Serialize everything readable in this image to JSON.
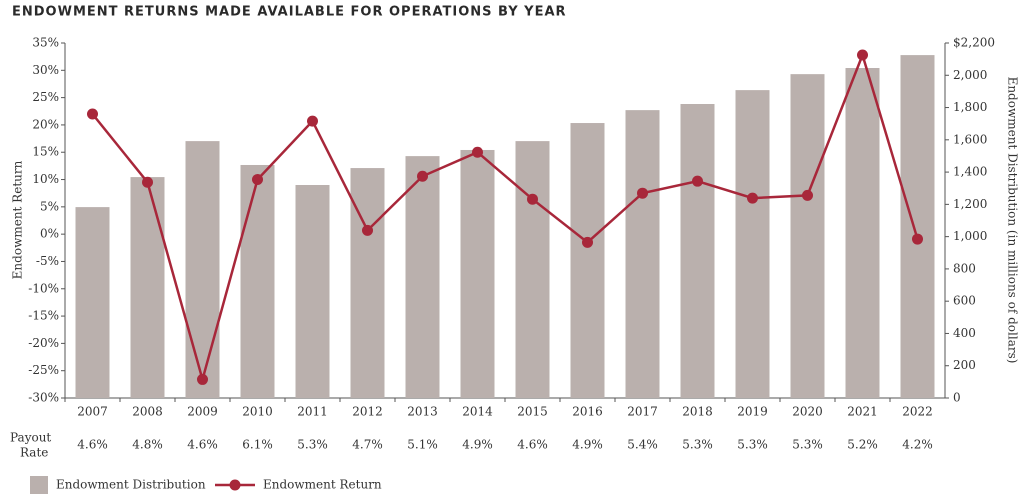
{
  "chart_data": {
    "type": "bar",
    "title": "ENDOWMENT RETURNS MADE AVAILABLE FOR OPERATIONS BY YEAR",
    "ylabel": "Endowment Return",
    "y2label": "Endowment Distribution (in millions of dollars)",
    "categories": [
      "2007",
      "2008",
      "2009",
      "2010",
      "2011",
      "2012",
      "2013",
      "2014",
      "2015",
      "2016",
      "2017",
      "2018",
      "2019",
      "2020",
      "2021",
      "2022"
    ],
    "series": [
      {
        "name": "Endowment Distribution",
        "type": "bar",
        "axis": "y2",
        "color": "#bab0ad",
        "values": [
          1183,
          1369,
          1592,
          1444,
          1320,
          1425,
          1499,
          1537,
          1592,
          1704,
          1784,
          1822,
          1908,
          2007,
          2045,
          2125
        ]
      },
      {
        "name": "Endowment Return",
        "type": "line",
        "axis": "y",
        "color": "#a8273a",
        "values": [
          22,
          9.5,
          -26.6,
          10,
          20.7,
          0.7,
          10.6,
          15,
          6.4,
          -1.5,
          7.5,
          9.7,
          6.6,
          7.1,
          32.8,
          -0.9
        ]
      }
    ],
    "ylim": [
      -30,
      35
    ],
    "yticks": [
      {
        "value": 35,
        "label": "35%"
      },
      {
        "value": 30,
        "label": "30%"
      },
      {
        "value": 25,
        "label": "25%"
      },
      {
        "value": 20,
        "label": "20%"
      },
      {
        "value": 15,
        "label": "15%"
      },
      {
        "value": 10,
        "label": "10%"
      },
      {
        "value": 5,
        "label": "5%"
      },
      {
        "value": 0,
        "label": "0%"
      },
      {
        "value": -5,
        "label": "-5%"
      },
      {
        "value": -10,
        "label": "-10%"
      },
      {
        "value": -15,
        "label": "-15%"
      },
      {
        "value": -20,
        "label": "-20%"
      },
      {
        "value": -25,
        "label": "-25%"
      },
      {
        "value": -30,
        "label": "-30%"
      }
    ],
    "y2lim": [
      0,
      2200
    ],
    "y2ticks": [
      {
        "value": 2200,
        "label": "$2,200"
      },
      {
        "value": 2000,
        "label": "2,000"
      },
      {
        "value": 1800,
        "label": "1,800"
      },
      {
        "value": 1600,
        "label": "1,600"
      },
      {
        "value": 1400,
        "label": "1,400"
      },
      {
        "value": 1200,
        "label": "1,200"
      },
      {
        "value": 1000,
        "label": "1,000"
      },
      800,
      600,
      400,
      200,
      0
    ],
    "payout_label": [
      "Payout",
      "Rate"
    ],
    "payout_rates": [
      "4.6%",
      "4.8%",
      "4.6%",
      "6.1%",
      "5.3%",
      "4.7%",
      "5.1%",
      "4.9%",
      "4.6%",
      "4.9%",
      "5.4%",
      "5.3%",
      "5.3%",
      "5.3%",
      "5.2%",
      "4.2%"
    ]
  }
}
